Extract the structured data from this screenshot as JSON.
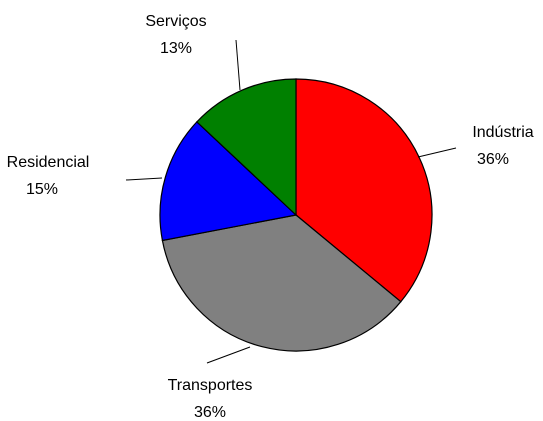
{
  "chart_data": {
    "type": "pie",
    "categories": [
      "Indústria",
      "Transportes",
      "Residencial",
      "Serviços"
    ],
    "values": [
      36,
      36,
      15,
      13
    ],
    "value_labels": [
      "36%",
      "36%",
      "15%",
      "13%"
    ],
    "colors": [
      "#ff0000",
      "#808080",
      "#0000ff",
      "#008000"
    ]
  }
}
